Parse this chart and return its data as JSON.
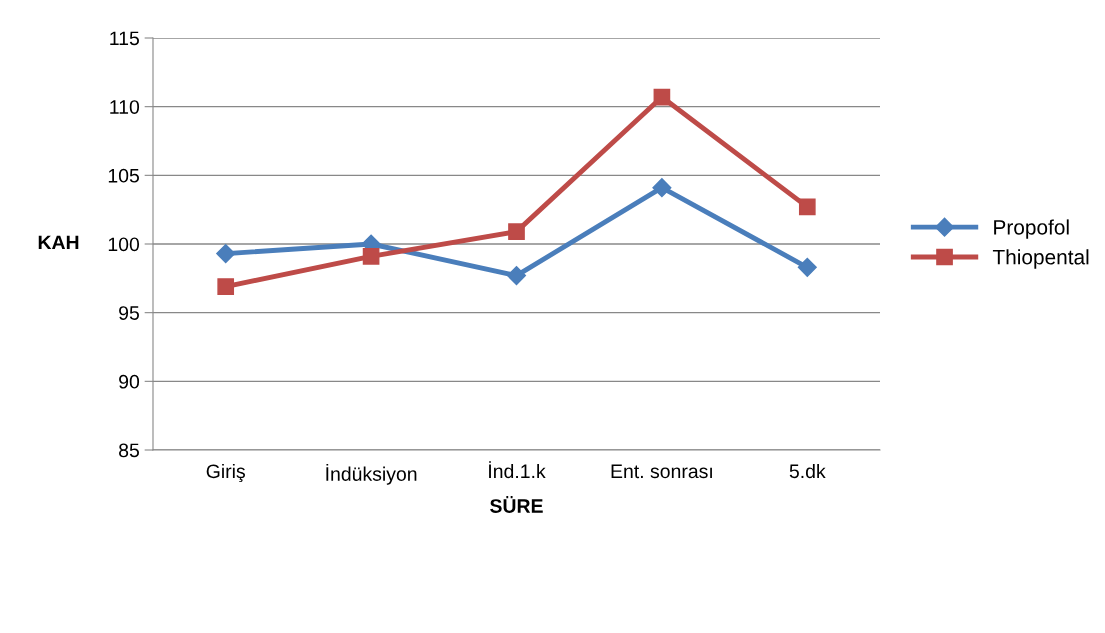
{
  "chart_data": {
    "type": "line",
    "xlabel": "SÜRE",
    "ylabel": "KAH",
    "categories": [
      "Giriş",
      "İndüksiyon",
      "İnd.1.k",
      "Ent. sonrası",
      "5.dk"
    ],
    "series": [
      {
        "name": "Propofol",
        "color": "#4a7ebb",
        "marker": "diamond",
        "values": [
          99.3,
          100.0,
          97.7,
          104.1,
          98.3
        ]
      },
      {
        "name": "Thiopental",
        "color": "#be4b48",
        "marker": "square",
        "values": [
          96.9,
          99.1,
          100.9,
          110.7,
          102.7
        ]
      }
    ],
    "ylim": [
      85,
      115
    ],
    "yticks": [
      85,
      90,
      95,
      100,
      105,
      110,
      115
    ],
    "grid": "y",
    "legend": "right",
    "line_style": "solid"
  }
}
